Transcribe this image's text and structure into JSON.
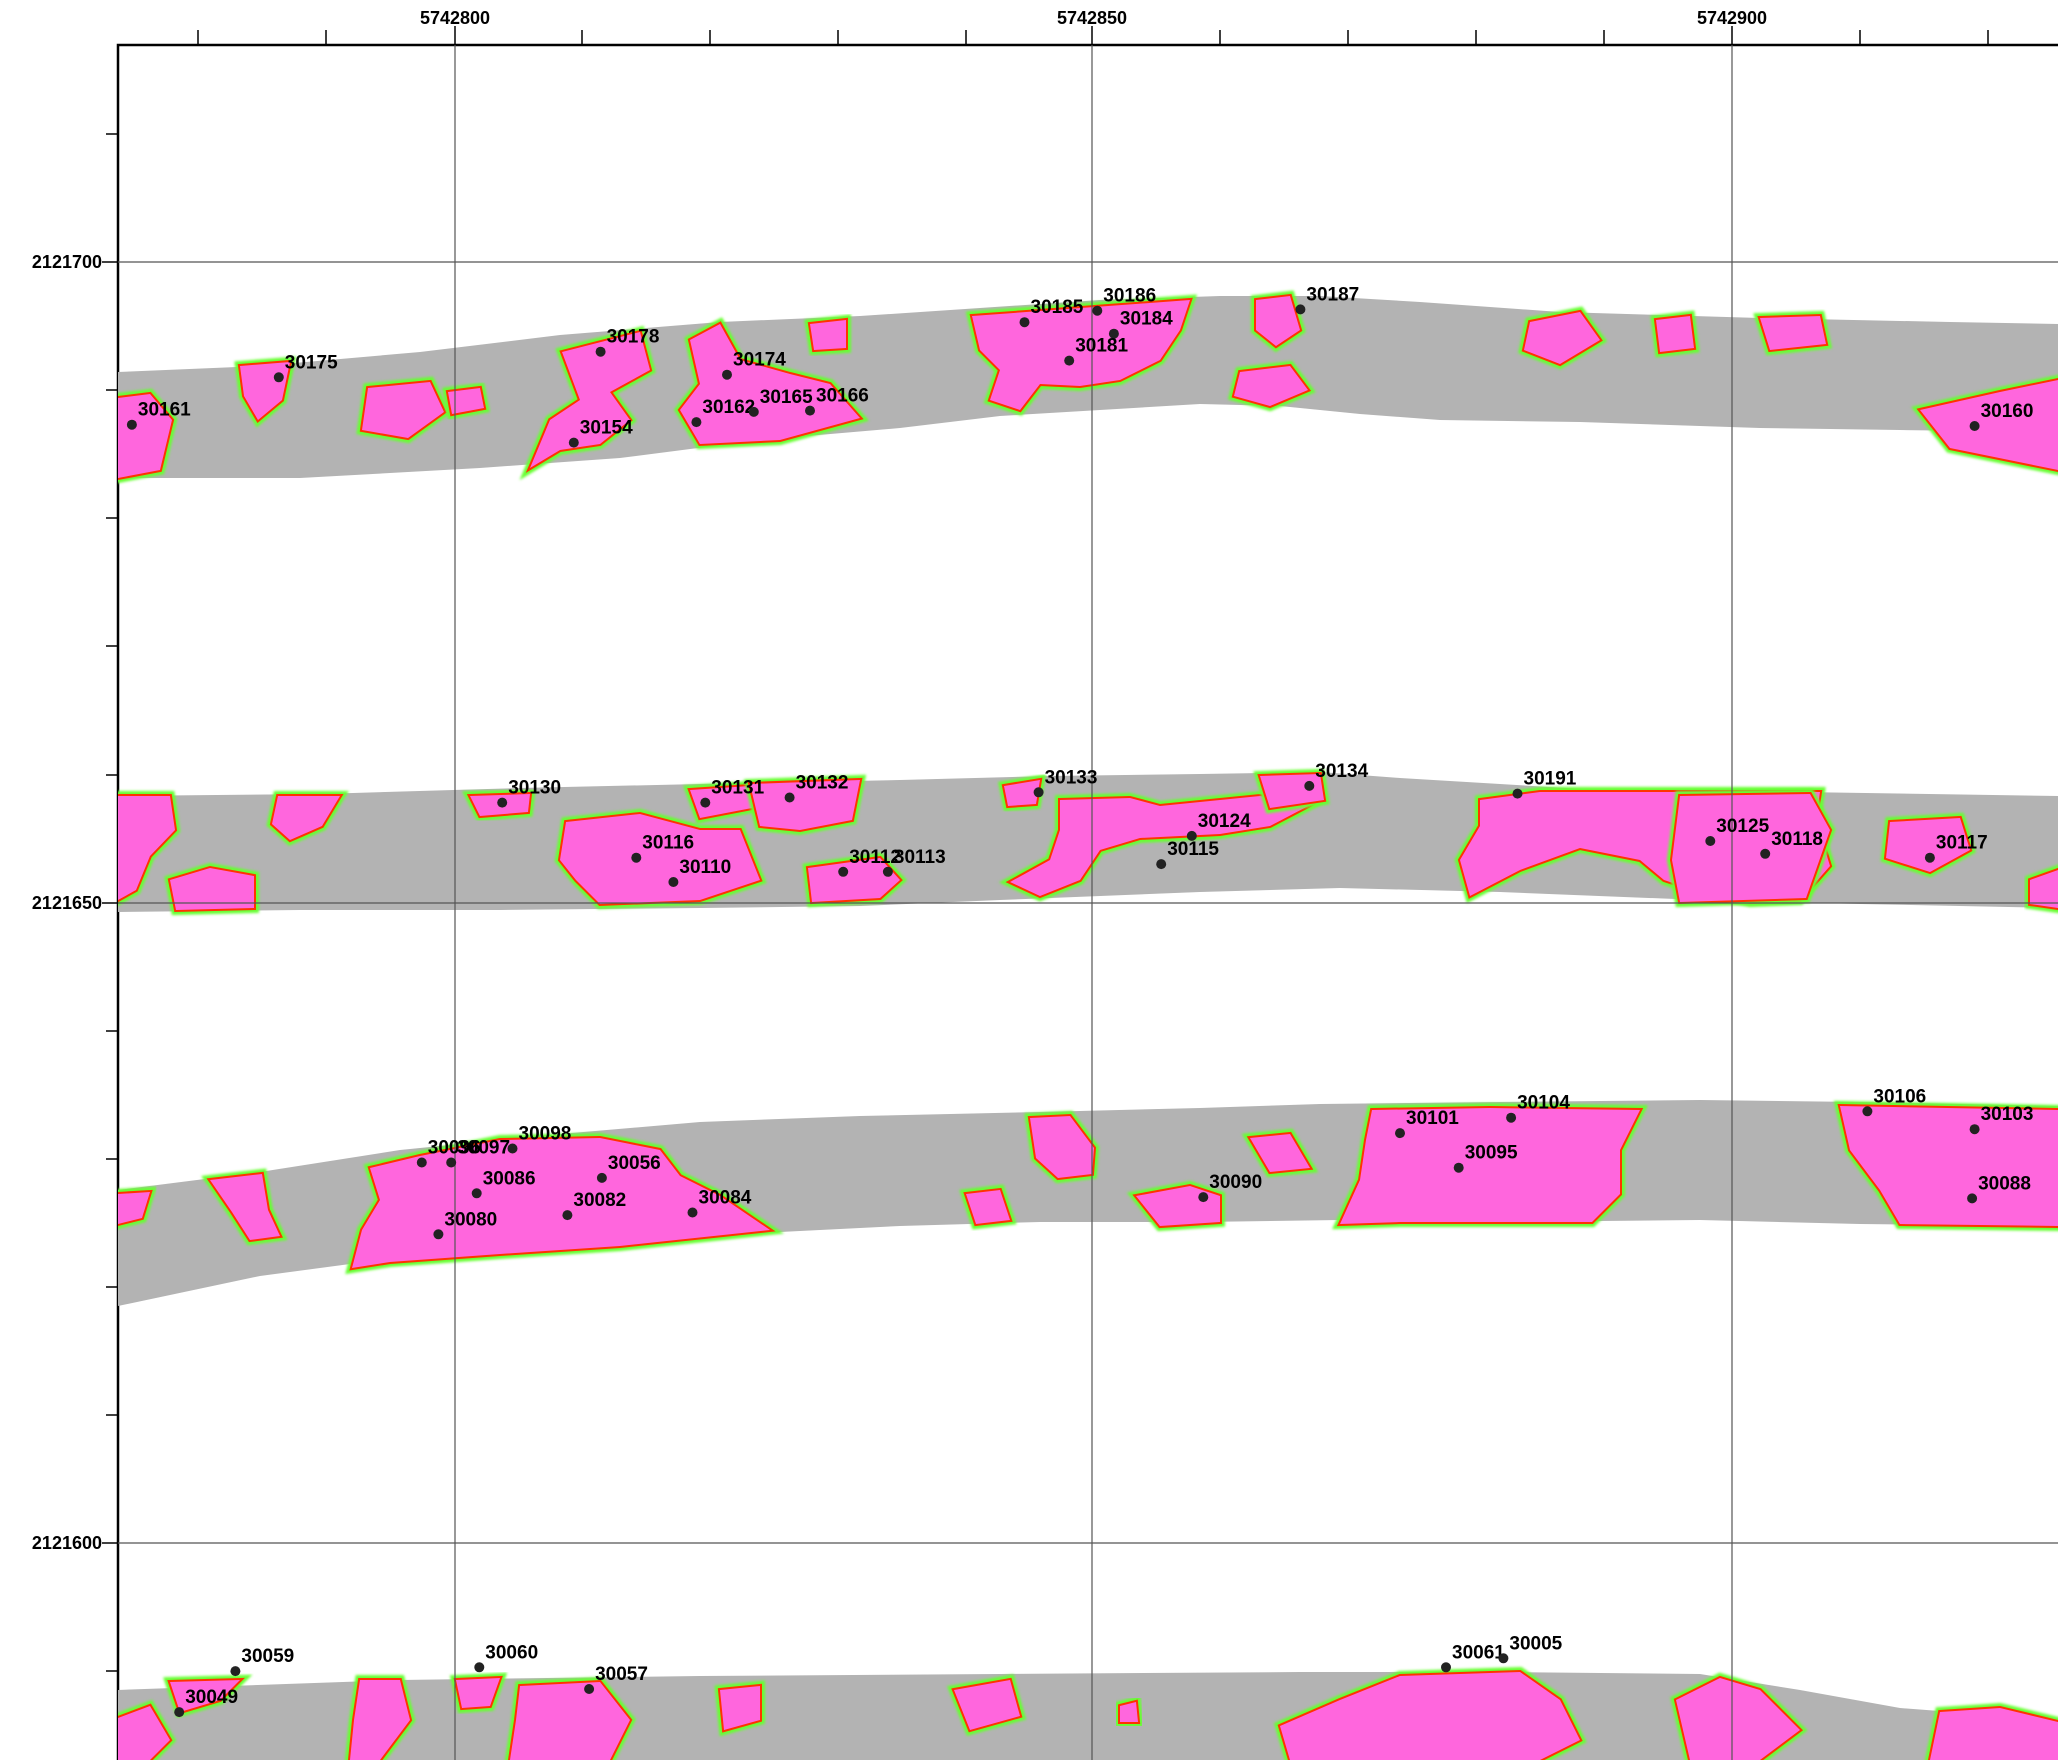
{
  "colors": {
    "strip": "#b3b3b3",
    "anomaly": "#ff66dd",
    "anomaly_core": "#cc0066",
    "halo_red": "#ff3300",
    "halo_yellow": "#ffcc00",
    "halo_green": "#66ff33",
    "gridline": "#555555",
    "point": "#222222"
  },
  "axes": {
    "x_ticks": [
      "5742800",
      "5742850",
      "5742900"
    ],
    "y_ticks": [
      "2121700",
      "2121650",
      "2121600"
    ]
  },
  "points": [
    {
      "id": "30175",
      "x": 5742786.2,
      "y": 2121691.0
    },
    {
      "id": "30178",
      "x": 5742811.4,
      "y": 2121693.0
    },
    {
      "id": "30161",
      "x": 5742774.7,
      "y": 2121687.3
    },
    {
      "id": "30154",
      "x": 5742809.3,
      "y": 2121685.9
    },
    {
      "id": "30174",
      "x": 5742821.3,
      "y": 2121691.2
    },
    {
      "id": "30162",
      "x": 5742818.9,
      "y": 2121687.5
    },
    {
      "id": "30165",
      "x": 5742823.4,
      "y": 2121688.3
    },
    {
      "id": "30166",
      "x": 5742827.8,
      "y": 2121688.4
    },
    {
      "id": "30185",
      "x": 5742844.6,
      "y": 2121695.3
    },
    {
      "id": "30186",
      "x": 5742850.3,
      "y": 2121696.2
    },
    {
      "id": "30184",
      "x": 5742851.6,
      "y": 2121694.4
    },
    {
      "id": "30181",
      "x": 5742848.1,
      "y": 2121692.3
    },
    {
      "id": "30187",
      "x": 5742866.2,
      "y": 2121696.3
    },
    {
      "id": "30160",
      "x": 5742919.0,
      "y": 2121687.2
    },
    {
      "id": "30130",
      "x": 5742803.7,
      "y": 2121657.8
    },
    {
      "id": "30131",
      "x": 5742819.6,
      "y": 2121657.8
    },
    {
      "id": "30132",
      "x": 5742826.2,
      "y": 2121658.2
    },
    {
      "id": "30133",
      "x": 5742845.7,
      "y": 2121658.6
    },
    {
      "id": "30134",
      "x": 5742866.9,
      "y": 2121659.1
    },
    {
      "id": "30191",
      "x": 5742883.2,
      "y": 2121658.5
    },
    {
      "id": "30116",
      "x": 5742814.2,
      "y": 2121653.5
    },
    {
      "id": "30110",
      "x": 5742817.1,
      "y": 2121651.6
    },
    {
      "id": "30112",
      "x": 5742830.4,
      "y": 2121652.4
    },
    {
      "id": "30113",
      "x": 5742833.9,
      "y": 2121652.4
    },
    {
      "id": "30124",
      "x": 5742857.7,
      "y": 2121655.2
    },
    {
      "id": "30115",
      "x": 5742855.3,
      "y": 2121653.0
    },
    {
      "id": "30125",
      "x": 5742898.3,
      "y": 2121654.8
    },
    {
      "id": "30118",
      "x": 5742902.6,
      "y": 2121653.8
    },
    {
      "id": "30117",
      "x": 5742915.5,
      "y": 2121653.5
    },
    {
      "id": "30096",
      "x": 5742797.4,
      "y": 2121629.7
    },
    {
      "id": "30097",
      "x": 5742799.7,
      "y": 2121629.7
    },
    {
      "id": "30098",
      "x": 5742804.5,
      "y": 2121630.8
    },
    {
      "id": "30056",
      "x": 5742811.5,
      "y": 2121628.5
    },
    {
      "id": "30086",
      "x": 5742801.7,
      "y": 2121627.3
    },
    {
      "id": "30082",
      "x": 5742808.8,
      "y": 2121625.6
    },
    {
      "id": "30080",
      "x": 5742798.7,
      "y": 2121624.1
    },
    {
      "id": "30084",
      "x": 5742818.6,
      "y": 2121625.8
    },
    {
      "id": "30090",
      "x": 5742858.6,
      "y": 2121627.0
    },
    {
      "id": "30101",
      "x": 5742874.0,
      "y": 2121632.0
    },
    {
      "id": "30104",
      "x": 5742882.7,
      "y": 2121633.2
    },
    {
      "id": "30095",
      "x": 5742878.6,
      "y": 2121629.3
    },
    {
      "id": "30106",
      "x": 5742910.6,
      "y": 2121633.7
    },
    {
      "id": "30103",
      "x": 5742919.0,
      "y": 2121632.3
    },
    {
      "id": "30088",
      "x": 5742918.8,
      "y": 2121626.9
    },
    {
      "id": "30059",
      "x": 5742782.8,
      "y": 2121590.0
    },
    {
      "id": "30049",
      "x": 5742778.4,
      "y": 2121586.8
    },
    {
      "id": "30060",
      "x": 5742801.9,
      "y": 2121590.3
    },
    {
      "id": "30057",
      "x": 5742810.5,
      "y": 2121588.6
    },
    {
      "id": "30061",
      "x": 5742877.6,
      "y": 2121590.3
    },
    {
      "id": "30005",
      "x": 5742882.1,
      "y": 2121591.0
    }
  ]
}
